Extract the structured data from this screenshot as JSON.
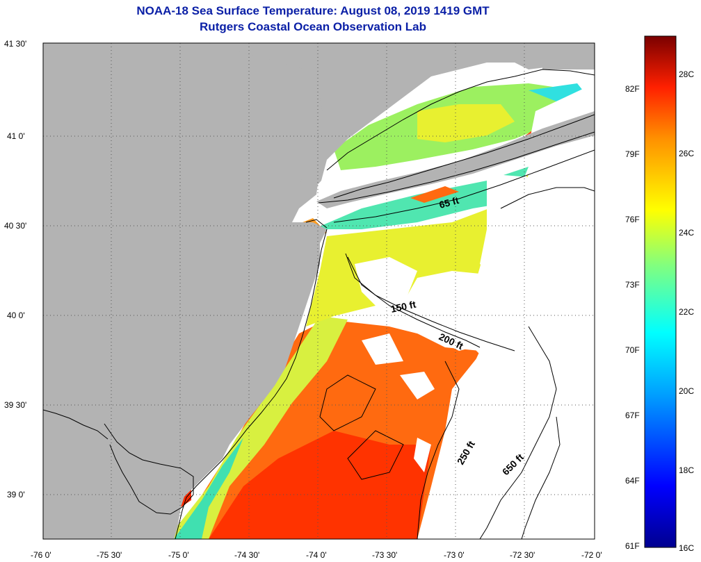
{
  "header": {
    "title": "NOAA-18 Sea Surface Temperature:  August 08, 2019 1419 GMT",
    "subtitle": "Rutgers Coastal Ocean Observation Lab"
  },
  "map": {
    "lat_labels": [
      "41 30'",
      "41 0'",
      "40 30'",
      "40 0'",
      "39 30'",
      "39 0'"
    ],
    "lon_labels": [
      "-76 0'",
      "-75 30'",
      "-75 0'",
      "-74 30'",
      "-74 0'",
      "-73 30'",
      "-73 0'",
      "-72 30'",
      "-72 0'"
    ],
    "depth_labels": [
      "65 ft",
      "150 ft",
      "200 ft",
      "250 ft",
      "650 ft"
    ],
    "colors": {
      "land": "#b3b3b3",
      "no_data": "#ffffff",
      "title": "#0a1fa6"
    }
  },
  "colorbar": {
    "fahrenheit_labels": [
      "82F",
      "79F",
      "76F",
      "73F",
      "70F",
      "67F",
      "64F",
      "61F"
    ],
    "celsius_labels": [
      "28C",
      "26C",
      "24C",
      "22C",
      "20C",
      "18C",
      "16C"
    ],
    "range_c": [
      16,
      29.5
    ]
  }
}
